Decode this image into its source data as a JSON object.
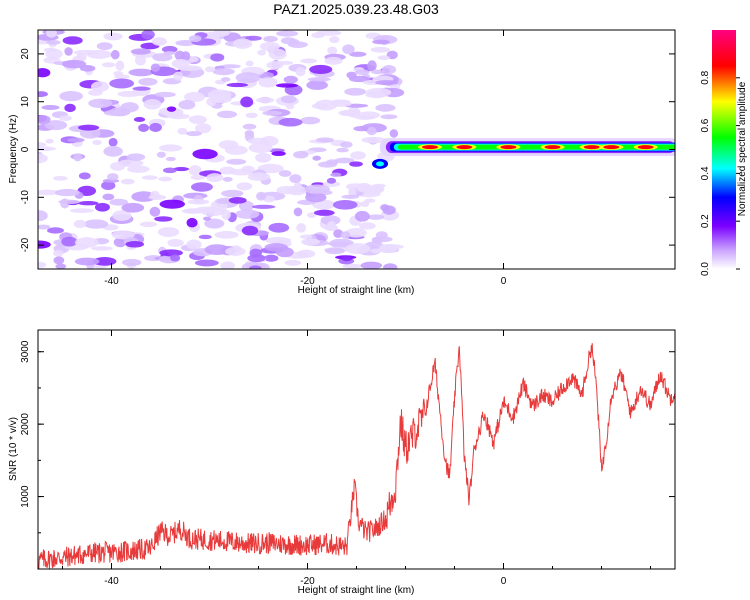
{
  "title": "PAZ1.2025.039.23.48.G03",
  "chart_data": [
    {
      "type": "heatmap",
      "xlabel": "Height of straight line (km)",
      "ylabel": "Frequency (Hz)",
      "xlim": [
        -47.5,
        17.5
      ],
      "ylim": [
        -25,
        25
      ],
      "xticks": [
        -40,
        -20,
        0
      ],
      "yticks": [
        -20,
        -10,
        0,
        10,
        20
      ],
      "colorbar": {
        "label": "Normalized spectral amplitude",
        "range": [
          0,
          1
        ],
        "ticks": [
          0.0,
          0.2,
          0.4,
          0.6,
          0.8
        ]
      },
      "signal_ridge": {
        "x_start": -12,
        "x_end": 17.5,
        "frequency_hz": 0.5,
        "description_values": "narrow high-amplitude band near 0 Hz for x > -12 km; broad low-amplitude noise (0.05-0.3) across all frequencies for x < -12 km"
      },
      "colors": {
        "ridge_low": "#00ffff",
        "ridge_mid": "#00ff00",
        "ridge_high": "#ff0000",
        "noise": "#8a00ff"
      }
    },
    {
      "type": "line",
      "xlabel": "Height of straight line (km)",
      "ylabel": "SNR (10 * v/v)",
      "xlim": [
        -47.5,
        17.5
      ],
      "ylim": [
        0,
        3300
      ],
      "xticks": [
        -40,
        -20,
        0
      ],
      "yticks": [
        1000,
        2000,
        3000
      ],
      "series": [
        {
          "color": "#e83a3a",
          "x": [
            -47.5,
            -45,
            -42,
            -40,
            -38,
            -36,
            -35,
            -34,
            -33,
            -32,
            -30,
            -28,
            -26,
            -24,
            -22,
            -20,
            -18,
            -16,
            -15.2,
            -14.8,
            -14,
            -13,
            -12,
            -11,
            -10.5,
            -10,
            -9,
            -8,
            -7,
            -6,
            -5.5,
            -5,
            -4.5,
            -4,
            -3.5,
            -3,
            -2.5,
            -2,
            -1,
            0,
            1,
            2,
            3,
            4,
            5,
            6,
            7,
            8,
            9,
            9.5,
            10,
            10.5,
            11,
            12,
            13,
            14,
            15,
            16,
            17,
            17.5
          ],
          "y": [
            120,
            160,
            220,
            230,
            250,
            280,
            520,
            450,
            560,
            420,
            400,
            380,
            350,
            360,
            340,
            330,
            350,
            300,
            1150,
            650,
            500,
            560,
            700,
            1150,
            2050,
            1650,
            1900,
            2150,
            2850,
            1550,
            1250,
            2350,
            3100,
            1550,
            950,
            1650,
            1900,
            2150,
            1750,
            2300,
            2100,
            2550,
            2250,
            2400,
            2300,
            2500,
            2650,
            2400,
            3100,
            2500,
            1350,
            1800,
            2400,
            2700,
            2150,
            2500,
            2250,
            2700,
            2350,
            2450
          ]
        }
      ]
    }
  ]
}
